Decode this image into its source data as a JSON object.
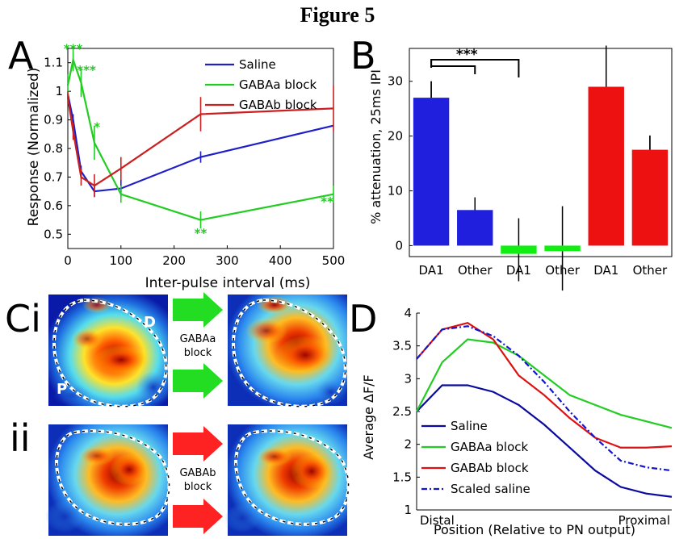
{
  "figure_title": "Figure 5",
  "panel_labels": {
    "A": "A",
    "B": "B",
    "Ci": "Ci",
    "ii": "ii",
    "D": "D"
  },
  "panel_c": {
    "glom_labels": {
      "dorsal": "D",
      "posterior": "P"
    },
    "arrow_labels": {
      "gabaa": [
        "GABAa",
        "block"
      ],
      "gabab": [
        "GABAb",
        "block"
      ]
    },
    "colors": {
      "gabaa_arrow": "#22dd22",
      "gabab_arrow": "#ff2222",
      "outline": "#ffffff"
    }
  },
  "chart_data": [
    {
      "id": "A",
      "type": "line",
      "xlabel": "Inter-pulse interval (ms)",
      "ylabel": "Response (Normalized)",
      "xlim": [
        0,
        500
      ],
      "ylim": [
        0.45,
        1.15
      ],
      "xticks": [
        0,
        100,
        200,
        300,
        400,
        500
      ],
      "yticks": [
        0.5,
        0.6,
        0.7,
        0.8,
        0.9,
        1,
        1.1
      ],
      "legend_position": "top-right",
      "series": [
        {
          "name": "Saline",
          "color": "#1f1fc8",
          "x": [
            0,
            10,
            25,
            50,
            100,
            250,
            500
          ],
          "y": [
            0.99,
            0.9,
            0.72,
            0.65,
            0.66,
            0.77,
            0.88
          ],
          "err": [
            0.0,
            0.02,
            0.02,
            0.02,
            0.03,
            0.02,
            0.0
          ]
        },
        {
          "name": "GABAa block",
          "color": "#22cc22",
          "x": [
            0,
            10,
            25,
            50,
            100,
            250,
            500
          ],
          "y": [
            1.02,
            1.11,
            1.03,
            0.82,
            0.64,
            0.55,
            0.64
          ],
          "err": [
            0.04,
            0.04,
            0.05,
            0.06,
            0.03,
            0.03,
            0.03
          ]
        },
        {
          "name": "GABAb block",
          "color": "#cc1f1f",
          "x": [
            0,
            10,
            25,
            50,
            100,
            250,
            500
          ],
          "y": [
            0.98,
            0.86,
            0.7,
            0.67,
            0.73,
            0.92,
            0.94
          ],
          "err": [
            0.02,
            0.03,
            0.03,
            0.04,
            0.04,
            0.06,
            0.08
          ]
        }
      ],
      "annotations": [
        {
          "text": "***",
          "x": 10,
          "y": 1.135,
          "color": "#22cc22"
        },
        {
          "text": "***",
          "x": 35,
          "y": 1.06,
          "color": "#22cc22"
        },
        {
          "text": "*",
          "x": 55,
          "y": 0.86,
          "color": "#22cc22"
        },
        {
          "text": "**",
          "x": 250,
          "y": 0.49,
          "color": "#22cc22"
        },
        {
          "text": "**",
          "x": 488,
          "y": 0.6,
          "color": "#22cc22"
        }
      ]
    },
    {
      "id": "B",
      "type": "bar",
      "ylabel": "% attenuation, 25ms IPI",
      "ylim": [
        -2,
        36
      ],
      "yticks": [
        0,
        10,
        20,
        30
      ],
      "categories": [
        "DA1",
        "Other",
        "DA1",
        "Other",
        "DA1",
        "Other"
      ],
      "values": [
        27,
        6.5,
        -1.5,
        -1,
        29,
        17.5
      ],
      "errors": [
        3,
        2.3,
        5,
        7.2,
        7.5,
        2.6
      ],
      "colors": [
        "#1f1fdd",
        "#1f1fdd",
        "#11ee11",
        "#11ee11",
        "#ee1111",
        "#ee1111"
      ],
      "annotations": [
        {
          "text": "***",
          "from": 0,
          "to": [
            1,
            2
          ]
        }
      ]
    },
    {
      "id": "D",
      "type": "line",
      "ylabel": "Average   ΔF/F",
      "xlabel": "Position (Relative to PN output)",
      "xtick_labels": [
        "Distal",
        "Proximal"
      ],
      "xlim": [
        0,
        1
      ],
      "ylim": [
        1.0,
        4.0
      ],
      "yticks": [
        1,
        1.5,
        2,
        2.5,
        3,
        3.5,
        4
      ],
      "legend_position": "bottom-left",
      "series": [
        {
          "name": "Saline",
          "color": "#0a0aa0",
          "dash": "",
          "x": [
            0,
            0.1,
            0.2,
            0.3,
            0.4,
            0.5,
            0.6,
            0.7,
            0.8,
            0.9,
            1.0
          ],
          "y": [
            2.5,
            2.9,
            2.9,
            2.8,
            2.6,
            2.3,
            1.95,
            1.6,
            1.35,
            1.25,
            1.2
          ]
        },
        {
          "name": "GABAa block",
          "color": "#22cc22",
          "dash": "",
          "x": [
            0,
            0.1,
            0.2,
            0.3,
            0.4,
            0.5,
            0.6,
            0.7,
            0.8,
            0.9,
            1.0
          ],
          "y": [
            2.5,
            3.25,
            3.6,
            3.55,
            3.35,
            3.05,
            2.75,
            2.6,
            2.45,
            2.35,
            2.25
          ]
        },
        {
          "name": "GABAb block",
          "color": "#dd1111",
          "dash": "",
          "x": [
            0,
            0.1,
            0.2,
            0.3,
            0.4,
            0.5,
            0.6,
            0.7,
            0.8,
            0.9,
            1.0
          ],
          "y": [
            3.3,
            3.75,
            3.85,
            3.6,
            3.05,
            2.75,
            2.4,
            2.1,
            1.95,
            1.95,
            1.97
          ]
        },
        {
          "name": "Scaled saline",
          "color": "#1414cc",
          "dash": "7 3 2 3",
          "x": [
            0,
            0.1,
            0.2,
            0.3,
            0.4,
            0.5,
            0.6,
            0.7,
            0.8,
            0.9,
            1.0
          ],
          "y": [
            3.3,
            3.75,
            3.8,
            3.65,
            3.35,
            2.95,
            2.5,
            2.1,
            1.75,
            1.65,
            1.6
          ]
        }
      ]
    }
  ]
}
